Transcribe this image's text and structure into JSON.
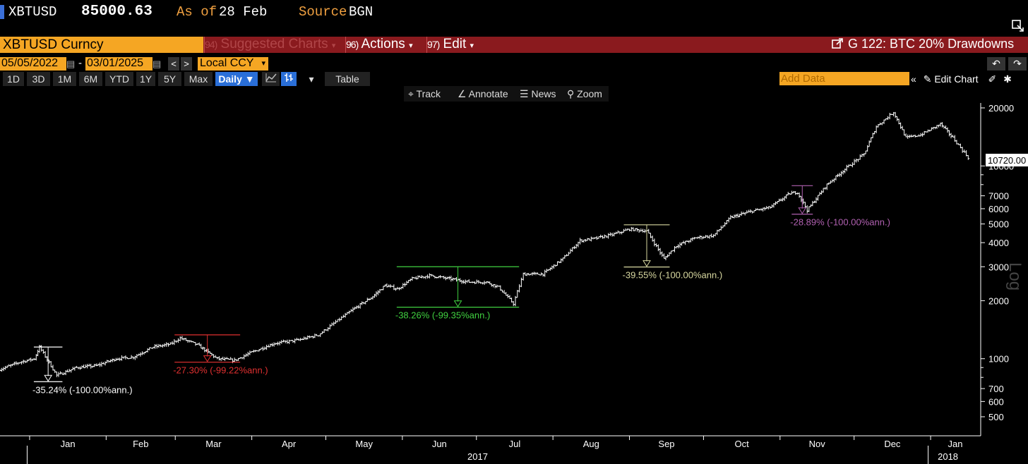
{
  "header": {
    "ticker": "XBTUSD",
    "price": "85000.63",
    "as_of_label": "As of",
    "as_of_date": "28 Feb",
    "source_label": "Source",
    "source_value": "BGN"
  },
  "toolbar": {
    "security": "XBTUSD Curncy",
    "suggested_num": "94)",
    "suggested_label": "Suggested Charts",
    "actions_num": "96)",
    "actions_label": "Actions",
    "edit_num": "97)",
    "edit_label": "Edit",
    "chart_title": "G 122: BTC 20% Drawdowns"
  },
  "range": {
    "start_date": "05/05/2022",
    "end_date": "03/01/2025",
    "currency": "Local CCY"
  },
  "periods": [
    "1D",
    "3D",
    "1M",
    "6M",
    "YTD",
    "1Y",
    "5Y",
    "Max"
  ],
  "frequency": "Daily",
  "table_label": "Table",
  "add_data_placeholder": "Add Data",
  "edit_chart_label": "Edit Chart",
  "chart_tools": {
    "track": "Track",
    "annotate": "Annotate",
    "news": "News",
    "zoom": "Zoom"
  },
  "chart_data": {
    "type": "line",
    "style": "bar (OHLC)",
    "y_scale": "log",
    "ylabel": "Log",
    "ylim": [
      420,
      24000
    ],
    "y_ticks": [
      500,
      600,
      700,
      1000,
      2000,
      3000,
      4000,
      5000,
      6000,
      7000,
      10000,
      20000
    ],
    "x_months": [
      "Jan",
      "Feb",
      "Mar",
      "Apr",
      "May",
      "Jun",
      "Jul",
      "Aug",
      "Sep",
      "Oct",
      "Nov",
      "Dec",
      "Jan"
    ],
    "x_years": [
      "2017",
      "2018"
    ],
    "last_value": "10720.00",
    "series": [
      {
        "x": [
          "2016-12-20",
          "2016-12-28",
          "2017-01-03",
          "2017-01-05",
          "2017-01-12",
          "2017-01-20",
          "2017-01-28",
          "2017-02-05",
          "2017-02-12",
          "2017-02-20",
          "2017-02-27",
          "2017-03-03",
          "2017-03-10",
          "2017-03-18",
          "2017-03-25",
          "2017-04-01",
          "2017-04-10",
          "2017-04-20",
          "2017-04-28",
          "2017-05-05",
          "2017-05-12",
          "2017-05-20",
          "2017-05-25",
          "2017-05-30",
          "2017-06-05",
          "2017-06-12",
          "2017-06-20",
          "2017-06-28",
          "2017-07-05",
          "2017-07-10",
          "2017-07-16",
          "2017-07-20",
          "2017-07-28",
          "2017-08-05",
          "2017-08-12",
          "2017-08-18",
          "2017-08-25",
          "2017-09-01",
          "2017-09-08",
          "2017-09-15",
          "2017-09-20",
          "2017-09-28",
          "2017-10-05",
          "2017-10-12",
          "2017-10-20",
          "2017-10-28",
          "2017-11-05",
          "2017-11-08",
          "2017-11-12",
          "2017-11-20",
          "2017-11-28",
          "2017-12-05",
          "2017-12-10",
          "2017-12-17",
          "2017-12-22",
          "2017-12-28",
          "2018-01-05",
          "2018-01-10",
          "2018-01-17"
        ],
        "values": [
          880,
          960,
          1000,
          1150,
          820,
          900,
          920,
          1000,
          1020,
          1150,
          1190,
          1280,
          1180,
          1000,
          980,
          1080,
          1200,
          1250,
          1330,
          1550,
          1800,
          2100,
          2400,
          2300,
          2600,
          2700,
          2600,
          2500,
          2500,
          2350,
          1930,
          2750,
          2750,
          3300,
          4100,
          4200,
          4400,
          4700,
          4600,
          3300,
          3850,
          4250,
          4350,
          5400,
          5800,
          6100,
          7200,
          7300,
          5900,
          8000,
          9800,
          11500,
          16000,
          19000,
          14000,
          14500,
          16500,
          14000,
          10720
        ]
      }
    ],
    "annotations": [
      {
        "text": "-35.24% (-100.00%ann.)",
        "color": "#ffffff",
        "from_date": "2017-01-05",
        "to_date": "2017-01-12",
        "high": 1150,
        "low": 760
      },
      {
        "text": "-27.30% (-99.22%ann.)",
        "color": "#e03030",
        "from_date": "2017-03-03",
        "to_date": "2017-03-25",
        "high": 1330,
        "low": 960
      },
      {
        "text": "-38.26% (-99.35%ann.)",
        "color": "#40d040",
        "from_date": "2017-06-01",
        "to_date": "2017-07-16",
        "high": 3000,
        "low": 1850
      },
      {
        "text": "-39.55% (-100.00%ann.)",
        "color": "#d8d8a0",
        "from_date": "2017-09-01",
        "to_date": "2017-09-15",
        "high": 4950,
        "low": 2990
      },
      {
        "text": "-28.89% (-100.00%ann.)",
        "color": "#b060b0",
        "from_date": "2017-11-08",
        "to_date": "2017-11-12",
        "high": 7900,
        "low": 5620
      }
    ]
  }
}
